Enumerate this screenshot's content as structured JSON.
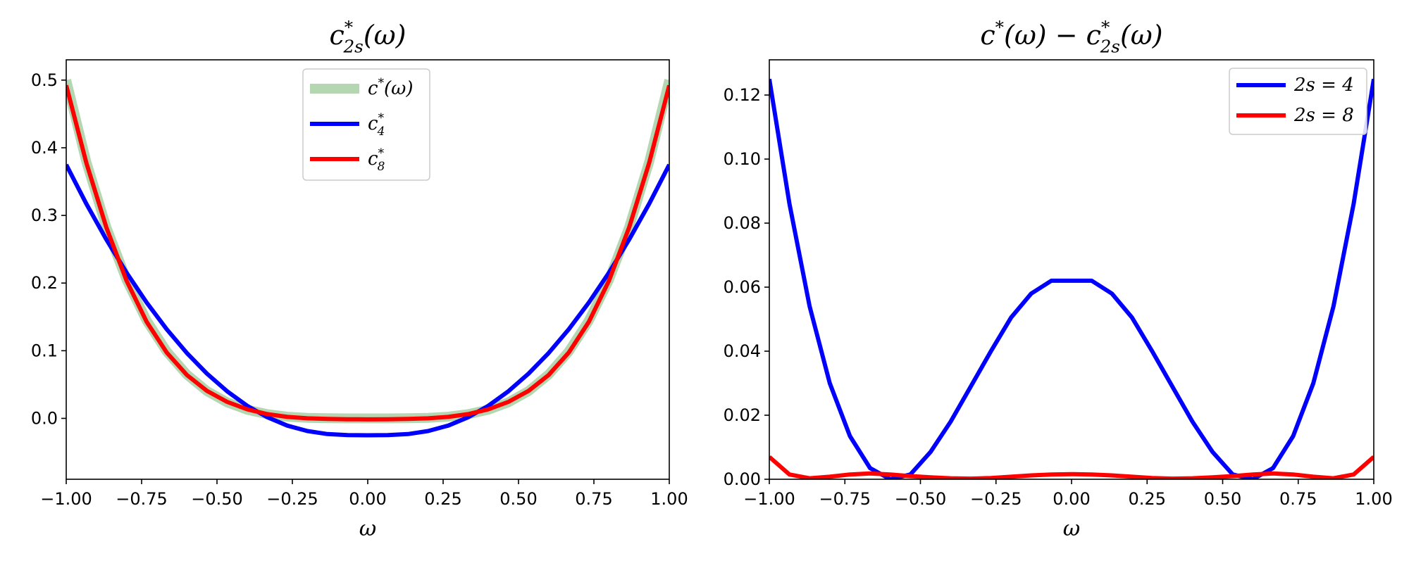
{
  "chart_data": [
    {
      "type": "line",
      "title": "c*2s(ω)",
      "title_parts": {
        "base": "c",
        "sup": "*",
        "sub": "2s",
        "arg": "(ω)"
      },
      "xlabel": "ω",
      "ylabel": "",
      "xlim": [
        -1.0,
        1.0
      ],
      "ylim": [
        -0.09,
        0.53
      ],
      "xticks": [
        -1.0,
        -0.75,
        -0.5,
        -0.25,
        0.0,
        0.25,
        0.5,
        0.75,
        1.0
      ],
      "xtick_labels": [
        "−1.00",
        "−0.75",
        "−0.50",
        "−0.25",
        "0.00",
        "0.25",
        "0.50",
        "0.75",
        "1.00"
      ],
      "yticks": [
        0.0,
        0.1,
        0.2,
        0.3,
        0.4,
        0.5
      ],
      "ytick_labels": [
        "0.0",
        "0.1",
        "0.2",
        "0.3",
        "0.4",
        "0.5"
      ],
      "legend_position": "top-center",
      "x": [
        -1.0,
        -0.9333,
        -0.8667,
        -0.8,
        -0.7333,
        -0.6667,
        -0.6,
        -0.5333,
        -0.4667,
        -0.4,
        -0.3333,
        -0.2667,
        -0.2,
        -0.1333,
        -0.0667,
        0.0,
        0.0667,
        0.1333,
        0.2,
        0.2667,
        0.3333,
        0.4,
        0.4667,
        0.5333,
        0.6,
        0.6667,
        0.7333,
        0.8,
        0.8667,
        0.9333,
        1.0
      ],
      "series": [
        {
          "name": "c*(ω)",
          "legend": {
            "base": "c",
            "sup": "*",
            "sub": "",
            "arg": "(ω)"
          },
          "color": "#6aaf63",
          "opacity": 0.5,
          "width": 14,
          "values": [
            0.5,
            0.3794,
            0.2821,
            0.2048,
            0.1446,
            0.0988,
            0.0648,
            0.0405,
            0.0237,
            0.0128,
            0.0062,
            0.0025,
            0.0008,
            0.0002,
            0.0,
            0.0,
            0.0,
            0.0002,
            0.0008,
            0.0025,
            0.0062,
            0.0128,
            0.0237,
            0.0405,
            0.0648,
            0.0988,
            0.1446,
            0.2048,
            0.2821,
            0.3794,
            0.5
          ]
        },
        {
          "name": "c*4",
          "legend": {
            "base": "c",
            "sup": "*",
            "sub": "4",
            "arg": ""
          },
          "color": "#0000ff",
          "opacity": 1,
          "width": 6,
          "values": [
            0.375,
            0.3173,
            0.2641,
            0.2154,
            0.1713,
            0.1317,
            0.0966,
            0.0661,
            0.0401,
            0.0186,
            0.0017,
            -0.0107,
            -0.0187,
            -0.0232,
            -0.0247,
            -0.025,
            -0.0247,
            -0.0232,
            -0.0187,
            -0.0107,
            0.0017,
            0.0186,
            0.0401,
            0.0661,
            0.0966,
            0.1317,
            0.1713,
            0.2154,
            0.2641,
            0.3173,
            0.375
          ]
        },
        {
          "name": "c*8",
          "legend": {
            "base": "c",
            "sup": "*",
            "sub": "8",
            "arg": ""
          },
          "color": "#ff0000",
          "opacity": 1,
          "width": 6,
          "values": [
            0.4922,
            0.3779,
            0.2818,
            0.2036,
            0.1428,
            0.0973,
            0.0642,
            0.0407,
            0.0244,
            0.0134,
            0.0063,
            0.0022,
            0.0001,
            -0.0008,
            -0.0013,
            -0.0015,
            -0.0013,
            -0.0008,
            0.0001,
            0.0022,
            0.0063,
            0.0134,
            0.0244,
            0.0407,
            0.0642,
            0.0973,
            0.1428,
            0.2036,
            0.2818,
            0.3779,
            0.4922
          ]
        }
      ]
    },
    {
      "type": "line",
      "title": "c*(ω) − c*2s(ω)",
      "title_parts": {
        "left": {
          "base": "c",
          "sup": "*",
          "sub": "",
          "arg": "(ω)"
        },
        "op": " − ",
        "right": {
          "base": "c",
          "sup": "*",
          "sub": "2s",
          "arg": "(ω)"
        }
      },
      "xlabel": "ω",
      "ylabel": "",
      "xlim": [
        -1.0,
        1.0
      ],
      "ylim": [
        0.0,
        0.131
      ],
      "xticks": [
        -1.0,
        -0.75,
        -0.5,
        -0.25,
        0.0,
        0.25,
        0.5,
        0.75,
        1.0
      ],
      "xtick_labels": [
        "−1.00",
        "−0.75",
        "−0.50",
        "−0.25",
        "0.00",
        "0.25",
        "0.50",
        "0.75",
        "1.00"
      ],
      "yticks": [
        0.0,
        0.02,
        0.04,
        0.06,
        0.08,
        0.1,
        0.12
      ],
      "ytick_labels": [
        "0.00",
        "0.02",
        "0.04",
        "0.06",
        "0.08",
        "0.10",
        "0.12"
      ],
      "legend_position": "top-right",
      "x": [
        -1.0,
        -0.9333,
        -0.8667,
        -0.8,
        -0.7333,
        -0.6667,
        -0.6,
        -0.5333,
        -0.4667,
        -0.4,
        -0.3333,
        -0.2667,
        -0.2,
        -0.1333,
        -0.0667,
        0.0,
        0.0667,
        0.1333,
        0.2,
        0.2667,
        0.3333,
        0.4,
        0.4667,
        0.5333,
        0.6,
        0.6667,
        0.7333,
        0.8,
        0.8667,
        0.9333,
        1.0
      ],
      "series": [
        {
          "name": "2s = 4",
          "color": "#0000ff",
          "width": 6,
          "values": [
            0.125,
            0.086,
            0.054,
            0.03,
            0.0135,
            0.0035,
            0.0,
            0.0015,
            0.0085,
            0.018,
            0.029,
            0.04,
            0.0505,
            0.058,
            0.062,
            0.062,
            0.062,
            0.058,
            0.0505,
            0.04,
            0.029,
            0.018,
            0.0085,
            0.0015,
            0.0,
            0.0035,
            0.0135,
            0.03,
            0.054,
            0.086,
            0.125
          ]
        },
        {
          "name": "2s = 8",
          "color": "#ff0000",
          "width": 6,
          "values": [
            0.007,
            0.0015,
            0.0003,
            0.0008,
            0.0015,
            0.0018,
            0.0015,
            0.001,
            0.0006,
            0.0003,
            0.0002,
            0.0004,
            0.0008,
            0.0012,
            0.0015,
            0.0016,
            0.0015,
            0.0012,
            0.0008,
            0.0004,
            0.0002,
            0.0003,
            0.0006,
            0.001,
            0.0015,
            0.0018,
            0.0015,
            0.0008,
            0.0003,
            0.0015,
            0.007
          ]
        }
      ]
    }
  ]
}
